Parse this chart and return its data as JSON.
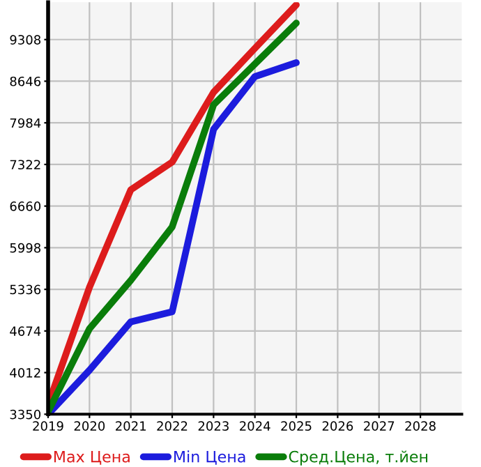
{
  "chart_data": {
    "type": "line",
    "x": [
      2019,
      2020,
      2021,
      2022,
      2023,
      2024,
      2025
    ],
    "series": [
      {
        "name": "Max Цена",
        "color": "#dd1c1c",
        "values": [
          3500,
          5370,
          6920,
          7360,
          8470,
          9170,
          9860
        ]
      },
      {
        "name": "Min Цена",
        "color": "#1c1cdd",
        "values": [
          3350,
          4050,
          4820,
          4980,
          7880,
          8720,
          8940
        ]
      },
      {
        "name": "Сред.Цена, т.йен",
        "color": "#0a7d0a",
        "values": [
          3390,
          4710,
          5480,
          6330,
          8270,
          8920,
          9570
        ]
      }
    ],
    "xlim": [
      2019,
      2029
    ],
    "xticks": [
      2019,
      2020,
      2021,
      2022,
      2023,
      2024,
      2025,
      2026,
      2027,
      2028
    ],
    "ylim": [
      3350,
      9900
    ],
    "yticks": [
      3350,
      4012,
      4674,
      5336,
      5998,
      6660,
      7322,
      7984,
      8646,
      9308
    ],
    "grid": true,
    "legend": "bottom",
    "marker": "none",
    "line_style": "solid"
  }
}
